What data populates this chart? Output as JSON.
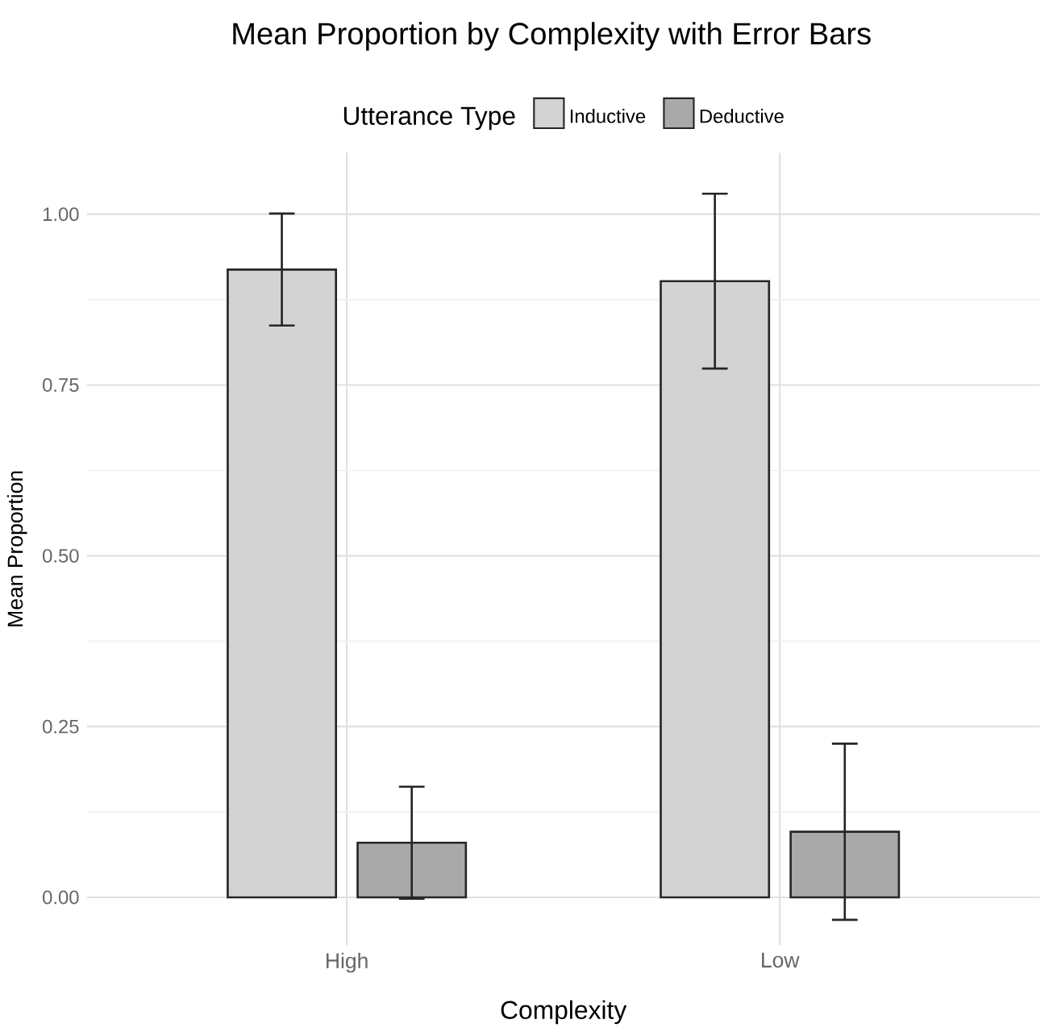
{
  "chart_data": {
    "type": "bar",
    "title": "Mean Proportion by Complexity with Error Bars",
    "xlabel": "Complexity",
    "ylabel": "Mean Proportion",
    "legend_title": "Utterance Type",
    "categories": [
      "High",
      "Low"
    ],
    "series": [
      {
        "name": "Inductive",
        "color": "#d3d3d3",
        "values": [
          0.919,
          0.902
        ],
        "errors": [
          0.082,
          0.128
        ]
      },
      {
        "name": "Deductive",
        "color": "#a9a9a9",
        "values": [
          0.08,
          0.096
        ],
        "errors": [
          0.082,
          0.129
        ]
      }
    ],
    "ylim": [
      -0.07,
      1.09
    ],
    "yticks": [
      {
        "value": 0,
        "label": "0.00"
      },
      {
        "value": 0.25,
        "label": "0.25"
      },
      {
        "value": 0.5,
        "label": "0.50"
      },
      {
        "value": 0.75,
        "label": "0.75"
      },
      {
        "value": 1,
        "label": "1.00"
      }
    ],
    "grid": true,
    "legend": "top"
  }
}
